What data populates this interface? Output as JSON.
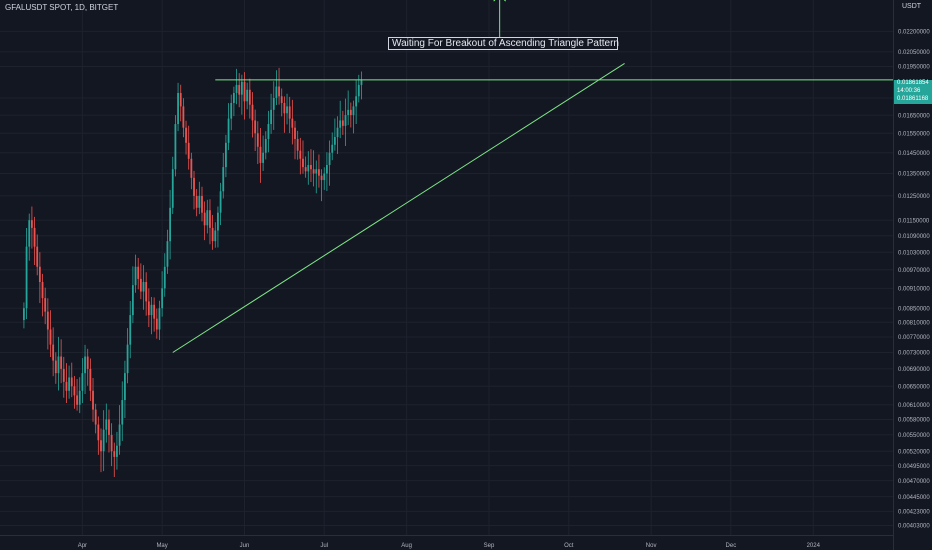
{
  "header": {
    "symbol_label": "GFALUSDT SPOT, 1D, BITGET",
    "currency": "USDT"
  },
  "annotation": {
    "text": "Waiting For Breakout of Ascending Triangle Pattern"
  },
  "price_tags": {
    "last_price": "0.01861854",
    "countdown": "14:00:36",
    "second_price": "0.01861168"
  },
  "colors": {
    "background": "#131722",
    "up_candle": "#26a69a",
    "down_candle": "#ef5350",
    "drawing": "#7ee787",
    "axis_text": "#b2b5be"
  },
  "chart_data": {
    "type": "candlestick",
    "title": "",
    "y_axis": {
      "scale": "log",
      "ticks": [
        0.022,
        0.0205,
        0.0195,
        0.0175,
        0.0165,
        0.0155,
        0.0145,
        0.0135,
        0.0125,
        0.0115,
        0.0109,
        0.0103,
        0.0097,
        0.0091,
        0.0085,
        0.0081,
        0.0077,
        0.0073,
        0.0069,
        0.0065,
        0.0061,
        0.0058,
        0.0055,
        0.0052,
        0.00495,
        0.0047,
        0.00445,
        0.00423,
        0.00403
      ],
      "tick_labels": [
        "0.02200000",
        "0.02050000",
        "0.01950000",
        "0.01750000",
        "0.01650000",
        "0.01550000",
        "0.01450000",
        "0.01350000",
        "0.01250000",
        "0.01150000",
        "0.01090000",
        "0.01030000",
        "0.00970000",
        "0.00910000",
        "0.00850000",
        "0.00810000",
        "0.00770000",
        "0.00730000",
        "0.00690000",
        "0.00650000",
        "0.00610000",
        "0.00580000",
        "0.00550000",
        "0.00520000",
        "0.00495000",
        "0.00470000",
        "0.00445000",
        "0.00423000",
        "0.00403000"
      ],
      "range": [
        0.0039,
        0.0245
      ]
    },
    "x_axis": {
      "range": [
        "2023-03-01",
        "2024-01-31"
      ],
      "ticks": [
        {
          "date": "2023-04-01",
          "label": "Apr"
        },
        {
          "date": "2023-05-01",
          "label": "May"
        },
        {
          "date": "2023-06-01",
          "label": "Jun"
        },
        {
          "date": "2023-07-01",
          "label": "Jul"
        },
        {
          "date": "2023-08-01",
          "label": "Aug"
        },
        {
          "date": "2023-09-01",
          "label": "Sep"
        },
        {
          "date": "2023-10-01",
          "label": "Oct"
        },
        {
          "date": "2023-11-01",
          "label": "Nov"
        },
        {
          "date": "2023-12-01",
          "label": "Dec"
        },
        {
          "date": "2024-01-01",
          "label": "2024"
        }
      ]
    },
    "first_date": "2023-03-10",
    "closes": [
      0.0085,
      0.0105,
      0.0115,
      0.0112,
      0.0105,
      0.0098,
      0.0093,
      0.0088,
      0.0084,
      0.0079,
      0.0075,
      0.0071,
      0.0068,
      0.0072,
      0.0069,
      0.0066,
      0.0064,
      0.0067,
      0.0065,
      0.0063,
      0.0061,
      0.0064,
      0.0068,
      0.0072,
      0.0069,
      0.0064,
      0.006,
      0.0057,
      0.0054,
      0.0052,
      0.0056,
      0.0058,
      0.0055,
      0.0052,
      0.0051,
      0.0053,
      0.0057,
      0.0062,
      0.0068,
      0.0075,
      0.0083,
      0.0092,
      0.0098,
      0.0094,
      0.009,
      0.0093,
      0.0087,
      0.0083,
      0.0086,
      0.0082,
      0.0079,
      0.0085,
      0.0091,
      0.0098,
      0.0107,
      0.012,
      0.0137,
      0.016,
      0.0178,
      0.017,
      0.0158,
      0.015,
      0.0142,
      0.0133,
      0.0125,
      0.012,
      0.0125,
      0.0118,
      0.0113,
      0.0119,
      0.0112,
      0.0107,
      0.0111,
      0.0118,
      0.0127,
      0.0138,
      0.015,
      0.0163,
      0.0172,
      0.0178,
      0.0183,
      0.0177,
      0.0185,
      0.0173,
      0.018,
      0.0171,
      0.0162,
      0.0155,
      0.0148,
      0.014,
      0.0145,
      0.0152,
      0.016,
      0.0168,
      0.0175,
      0.0182,
      0.0176,
      0.0172,
      0.0166,
      0.017,
      0.0163,
      0.0158,
      0.0152,
      0.0146,
      0.0142,
      0.0138,
      0.0136,
      0.0139,
      0.0137,
      0.0135,
      0.0137,
      0.0134,
      0.0132,
      0.0135,
      0.0139,
      0.0145,
      0.0149,
      0.0153,
      0.0158,
      0.0162,
      0.0159,
      0.0165,
      0.0168,
      0.0165,
      0.017,
      0.0176,
      0.0183,
      0.0186
    ],
    "triangle": {
      "resistance": {
        "start": {
          "date": "2023-05-21",
          "value": 0.01861854
        },
        "end": {
          "date": "2024-01-31",
          "value": 0.01861854
        }
      },
      "support": {
        "start": {
          "date": "2023-05-05",
          "value": 0.0073
        },
        "end": {
          "date": "2023-10-22",
          "value": 0.0197
        }
      },
      "breakout_arrow": {
        "date": "2023-09-05",
        "from": 0.0209,
        "to": 0.025
      }
    }
  }
}
